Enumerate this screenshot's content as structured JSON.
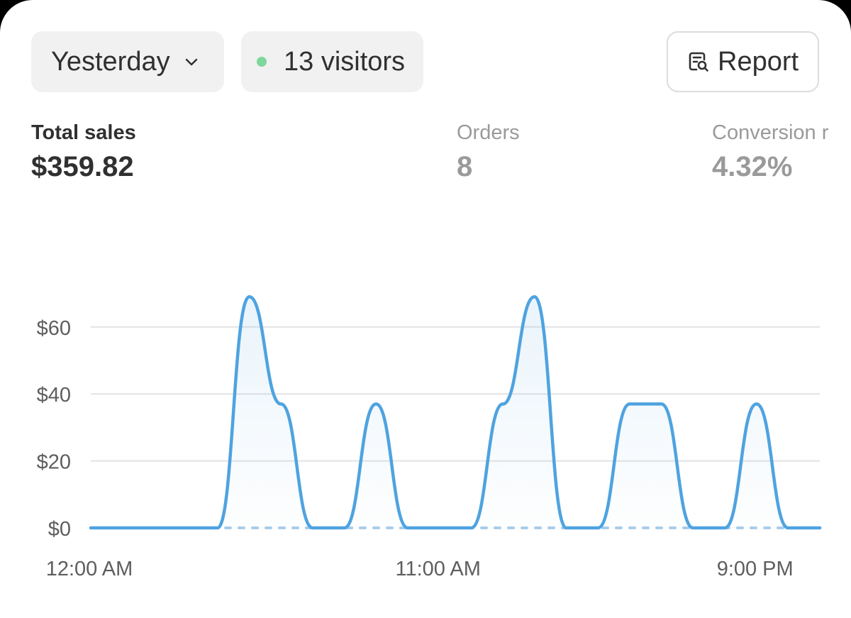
{
  "header": {
    "range_label": "Yesterday",
    "visitors_label": "13 visitors",
    "report_label": "Report"
  },
  "metrics": {
    "total_sales": {
      "label": "Total sales",
      "value": "$359.82"
    },
    "orders": {
      "label": "Orders",
      "value": "8"
    },
    "conversion": {
      "label": "Conversion r",
      "value": "4.32%"
    }
  },
  "colors": {
    "line": "#4fa3e0",
    "comparison": "#a9cdea",
    "live_dot": "#7ed79a",
    "grid": "#e3e3e3"
  },
  "icons": {
    "range_chevron": "chevron-down-icon",
    "live": "live-dot-icon",
    "report": "report-icon"
  },
  "chart_data": {
    "type": "line",
    "ylim": [
      0,
      69
    ],
    "yticks": [
      {
        "value": 0,
        "label": "$0"
      },
      {
        "value": 20,
        "label": "$20"
      },
      {
        "value": 40,
        "label": "$40"
      },
      {
        "value": 60,
        "label": "$60"
      }
    ],
    "xlim": [
      0,
      23
    ],
    "xticks": [
      {
        "value": 0,
        "label": "12:00 AM"
      },
      {
        "value": 11,
        "label": "11:00 AM"
      },
      {
        "value": 21,
        "label": "9:00 PM"
      }
    ],
    "grid": true,
    "series": [
      {
        "values": [
          0,
          0,
          0,
          0,
          0,
          69,
          37,
          0,
          0,
          37,
          0,
          0,
          0,
          37,
          69,
          0,
          0,
          37,
          37,
          0,
          0,
          37,
          0,
          0
        ]
      },
      {
        "values": [
          0,
          0,
          0,
          0,
          0,
          0,
          0,
          0,
          0,
          0,
          0,
          0,
          0,
          0,
          0,
          0,
          0,
          0,
          0,
          0,
          0,
          0,
          0,
          0
        ]
      }
    ]
  }
}
